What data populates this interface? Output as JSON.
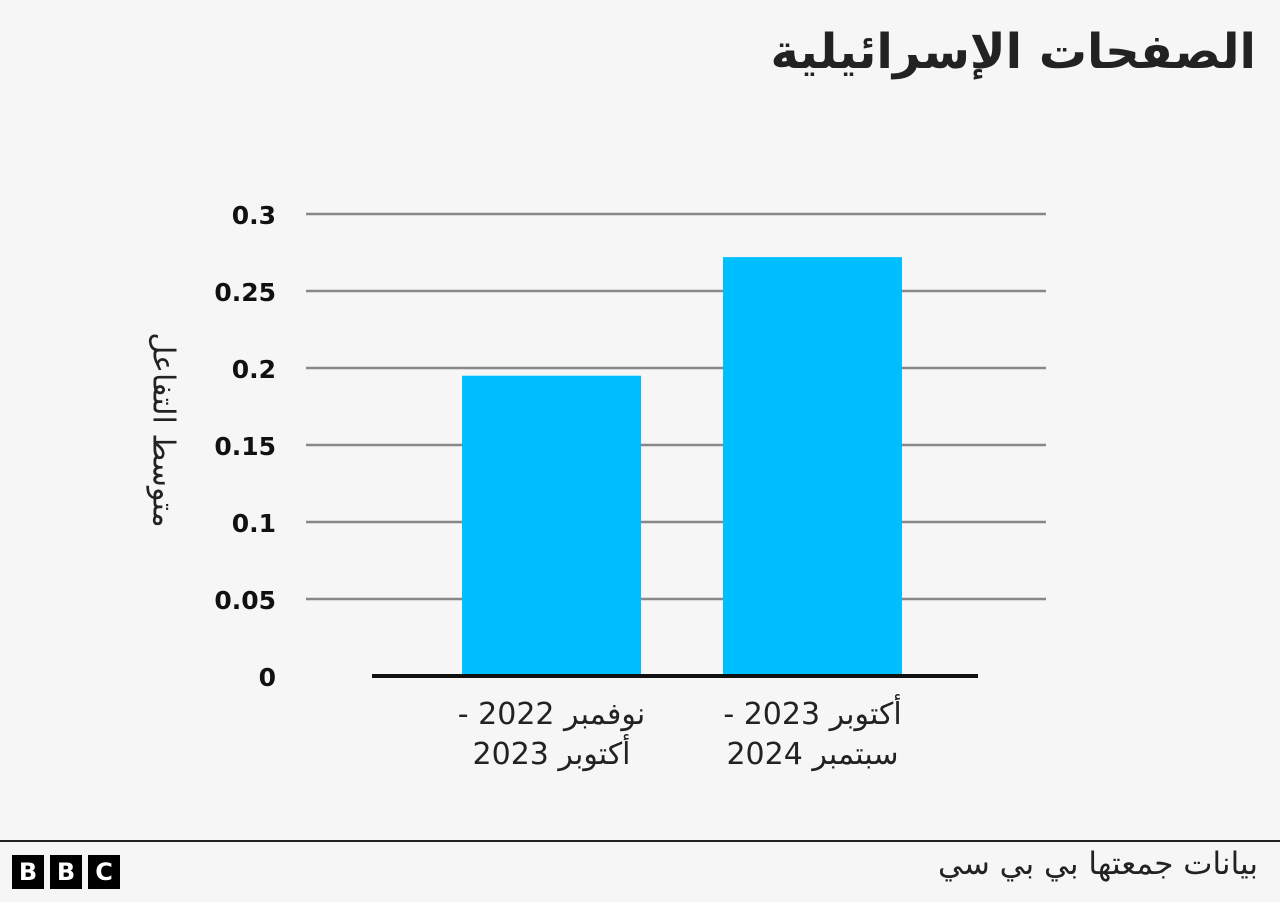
{
  "colors": {
    "bar": "#00bfff",
    "grid": "#888888",
    "baseline": "#111111",
    "text": "#222222",
    "background": "#f6f6f6"
  },
  "chart_data": {
    "type": "bar",
    "title": "الصفحات الإسرائيلية",
    "ylabel": "متوسط التفاعل",
    "xlabel": "",
    "ylim": [
      0,
      0.3
    ],
    "yticks": [
      "0",
      "0.05",
      "0.1",
      "0.15",
      "0.2",
      "0.25",
      "0.3"
    ],
    "categories": [
      [
        "نوفمبر 2022 -",
        "أكتوبر 2023"
      ],
      [
        "أكتوبر 2023 -",
        "سبتمبر 2024"
      ]
    ],
    "values": [
      0.195,
      0.272
    ],
    "grid": true,
    "legend": "none"
  },
  "footer": {
    "source": "بيانات جمعتها بي بي سي",
    "logo_letters": [
      "B",
      "B",
      "C"
    ]
  }
}
